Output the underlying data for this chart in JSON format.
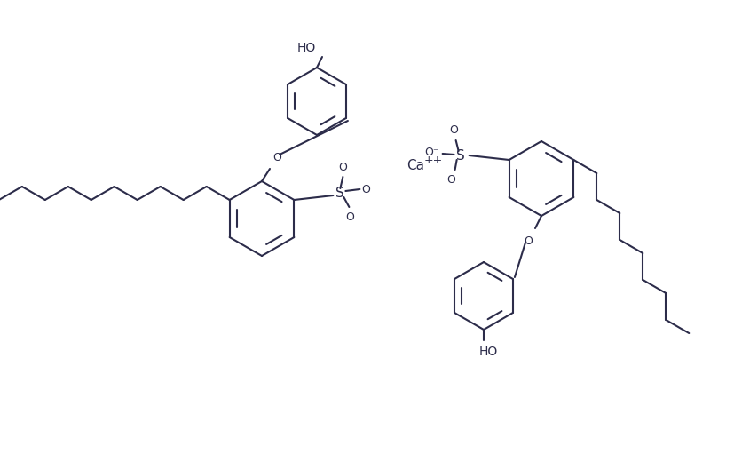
{
  "figsize": [
    8.37,
    5.11
  ],
  "dpi": 100,
  "line_color": "#2c2c4a",
  "line_width": 1.5,
  "background": "white",
  "ca_label": "Ca",
  "ca_charge": "++",
  "ho_label": "HO",
  "o_label": "O",
  "s_label": "S",
  "ominus_label": "O⁻",
  "o_up": "O",
  "o_down": "O"
}
